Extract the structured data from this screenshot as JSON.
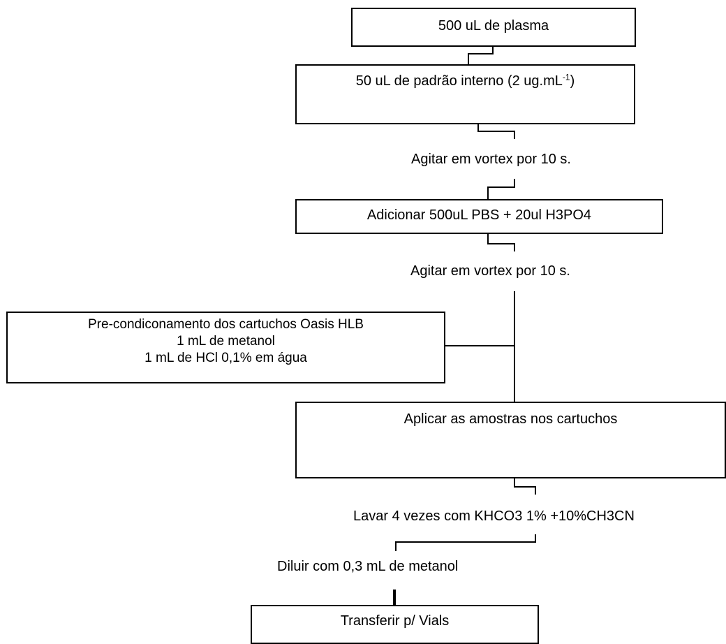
{
  "steps": {
    "plasma": "500 uL de plasma",
    "internal_standard": {
      "text": "50 uL de padrão interno (2 ug.mL",
      "sup": "-1",
      "close": ")"
    },
    "vortex_1": "Agitar em vortex por 10 s.",
    "add_pbs": "Adicionar 500uL PBS + 20ul H3PO4",
    "vortex_2": "Agitar em vortex por 10 s.",
    "precondition": {
      "line1": "Pre-condiconamento dos cartuchos Oasis HLB",
      "line2": "1 mL de metanol",
      "line3": "1 mL de HCl 0,1% em água"
    },
    "apply": "Aplicar as amostras nos cartuchos",
    "wash": "Lavar 4 vezes com KHCO3 1% +10%CH3CN",
    "dilute": "Diluir com 0,3 mL de metanol",
    "transfer": "Transferir p/ Vials"
  }
}
